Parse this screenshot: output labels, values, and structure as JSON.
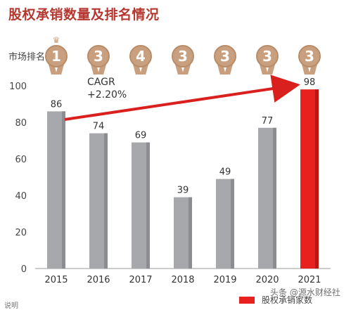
{
  "title": "股权承销数量及排名情况",
  "rank_label": "市场排名:",
  "ranks": [
    "1",
    "3",
    "4",
    "3",
    "3",
    "3",
    "3"
  ],
  "cagr_label": "CAGR",
  "cagr_value": "+2.20%",
  "legend_label": "股权承销家数",
  "watermark": "头条 @源水财经社",
  "corner_text": "说明",
  "colors": {
    "bar": "#a7a8ab",
    "bar_highlight": "#e8201e",
    "title": "#b5372f",
    "medal": "#c8a07f"
  },
  "chart_data": {
    "type": "bar",
    "categories": [
      "2015",
      "2016",
      "2017",
      "2018",
      "2019",
      "2020",
      "2021"
    ],
    "values": [
      86,
      74,
      69,
      39,
      49,
      77,
      98
    ],
    "yticks": [
      "0",
      "20",
      "40",
      "60",
      "80",
      "100"
    ],
    "ylim": [
      0,
      100
    ],
    "highlight_index": 6,
    "series": [
      {
        "name": "股权承销家数",
        "values": [
          86,
          74,
          69,
          39,
          49,
          77,
          98
        ]
      }
    ]
  }
}
